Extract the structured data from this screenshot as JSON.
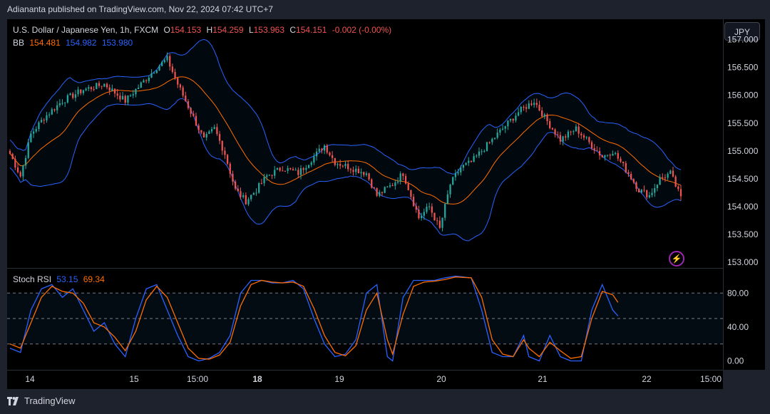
{
  "header": {
    "published": "Adiananta published on TradingView.com, Nov 22, 2024 07:42 UTC+7"
  },
  "currency_button": "JPY",
  "legend": {
    "symbol": "U.S. Dollar / Japanese Yen, 1h, FXCM",
    "o_label": "O",
    "o_value": "154.153",
    "h_label": "H",
    "h_value": "154.259",
    "l_label": "L",
    "l_value": "153.963",
    "c_label": "C",
    "c_value": "154.151",
    "change": "-0.002 (-0.00%)",
    "bb_label": "BB",
    "bb_mid": "154.481",
    "bb_upper": "154.982",
    "bb_lower": "153.980"
  },
  "stoch_legend": {
    "label": "Stoch RSI",
    "k": "53.15",
    "d": "69.34"
  },
  "footer": {
    "brand": "TradingView"
  },
  "colors": {
    "up": "#26a69a",
    "down": "#ef5350",
    "bb_mid": "#ff6d00",
    "bb_band": "#2962ff",
    "k": "#2962ff",
    "d": "#ff6d00"
  },
  "chart_data": [
    {
      "type": "candlestick",
      "title": "U.S. Dollar / Japanese Yen, 1h, FXCM",
      "y_ticks": [
        "157.000",
        "156.500",
        "156.000",
        "155.500",
        "155.000",
        "154.500",
        "154.000",
        "153.500",
        "153.000"
      ],
      "ylim": [
        152.95,
        157.2
      ],
      "x_ticks": [
        {
          "label": "14",
          "bold": false,
          "t": 0.05
        },
        {
          "label": "15",
          "bold": false,
          "t": 0.22
        },
        {
          "label": "15:00",
          "bold": false,
          "t": 0.355
        },
        {
          "label": "18",
          "bold": true,
          "t": 0.51
        },
        {
          "label": "19",
          "bold": false,
          "t": 0.67
        },
        {
          "label": "20",
          "bold": false,
          "t": 0.84
        },
        {
          "label": "21",
          "bold": false,
          "t": 1.0
        }
      ],
      "x_ticks_right": [
        {
          "label": "22",
          "bold": false,
          "t": 0.895
        },
        {
          "label": "15:00",
          "bold": false,
          "t": 0.985
        }
      ],
      "key_points": [
        [
          0,
          154.95
        ],
        [
          4,
          154.55
        ],
        [
          8,
          155.3
        ],
        [
          13,
          155.6
        ],
        [
          20,
          155.9
        ],
        [
          28,
          156.1
        ],
        [
          36,
          156.2
        ],
        [
          44,
          155.9
        ],
        [
          50,
          156.2
        ],
        [
          56,
          156.5
        ],
        [
          60,
          156.65
        ],
        [
          64,
          156.2
        ],
        [
          70,
          155.6
        ],
        [
          74,
          155.2
        ],
        [
          78,
          155.4
        ],
        [
          82,
          154.95
        ],
        [
          86,
          154.3
        ],
        [
          90,
          154.1
        ],
        [
          94,
          154.3
        ],
        [
          98,
          154.55
        ],
        [
          104,
          154.7
        ],
        [
          110,
          154.6
        ],
        [
          116,
          154.9
        ],
        [
          120,
          155.1
        ],
        [
          124,
          154.8
        ],
        [
          130,
          154.7
        ],
        [
          136,
          154.6
        ],
        [
          140,
          154.2
        ],
        [
          146,
          154.4
        ],
        [
          150,
          154.6
        ],
        [
          156,
          153.8
        ],
        [
          160,
          154.0
        ],
        [
          164,
          153.6
        ],
        [
          168,
          154.4
        ],
        [
          172,
          154.7
        ],
        [
          176,
          154.8
        ],
        [
          182,
          155.1
        ],
        [
          188,
          155.4
        ],
        [
          194,
          155.7
        ],
        [
          200,
          155.9
        ],
        [
          204,
          155.6
        ],
        [
          210,
          155.2
        ],
        [
          216,
          155.4
        ],
        [
          220,
          155.2
        ],
        [
          226,
          154.9
        ],
        [
          230,
          155.0
        ],
        [
          236,
          154.6
        ],
        [
          240,
          154.3
        ],
        [
          244,
          154.2
        ],
        [
          248,
          154.5
        ],
        [
          252,
          154.6
        ],
        [
          256,
          154.15
        ]
      ]
    },
    {
      "type": "line",
      "title": "Stoch RSI",
      "y_ticks": [
        "80.00",
        "40.00",
        "0.00"
      ],
      "ylim": [
        -8,
        108
      ],
      "bands": [
        80,
        50,
        20
      ],
      "series": [
        {
          "name": "K",
          "key_points": [
            [
              0,
              15
            ],
            [
              4,
              10
            ],
            [
              8,
              60
            ],
            [
              12,
              85
            ],
            [
              16,
              90
            ],
            [
              20,
              75
            ],
            [
              24,
              85
            ],
            [
              28,
              60
            ],
            [
              32,
              35
            ],
            [
              36,
              45
            ],
            [
              40,
              20
            ],
            [
              44,
              5
            ],
            [
              48,
              50
            ],
            [
              52,
              85
            ],
            [
              56,
              90
            ],
            [
              60,
              60
            ],
            [
              64,
              30
            ],
            [
              68,
              5
            ],
            [
              72,
              0
            ],
            [
              76,
              3
            ],
            [
              80,
              10
            ],
            [
              84,
              30
            ],
            [
              88,
              80
            ],
            [
              92,
              95
            ],
            [
              96,
              95
            ],
            [
              100,
              92
            ],
            [
              104,
              92
            ],
            [
              108,
              95
            ],
            [
              112,
              85
            ],
            [
              116,
              50
            ],
            [
              120,
              20
            ],
            [
              124,
              5
            ],
            [
              128,
              8
            ],
            [
              132,
              25
            ],
            [
              136,
              80
            ],
            [
              140,
              90
            ],
            [
              144,
              5
            ],
            [
              146,
              0
            ],
            [
              150,
              75
            ],
            [
              154,
              95
            ],
            [
              158,
              95
            ],
            [
              162,
              95
            ],
            [
              166,
              98
            ],
            [
              170,
              100
            ],
            [
              176,
              98
            ],
            [
              180,
              60
            ],
            [
              184,
              10
            ],
            [
              188,
              5
            ],
            [
              192,
              5
            ],
            [
              196,
              30
            ],
            [
              198,
              5
            ],
            [
              202,
              0
            ],
            [
              206,
              30
            ],
            [
              210,
              5
            ],
            [
              214,
              0
            ],
            [
              218,
              0
            ],
            [
              222,
              60
            ],
            [
              226,
              90
            ],
            [
              230,
              60
            ],
            [
              232,
              53
            ]
          ]
        },
        {
          "name": "D",
          "key_points": [
            [
              0,
              20
            ],
            [
              4,
              15
            ],
            [
              8,
              45
            ],
            [
              12,
              75
            ],
            [
              16,
              88
            ],
            [
              20,
              82
            ],
            [
              24,
              80
            ],
            [
              28,
              68
            ],
            [
              32,
              45
            ],
            [
              36,
              40
            ],
            [
              40,
              28
            ],
            [
              44,
              12
            ],
            [
              48,
              35
            ],
            [
              52,
              72
            ],
            [
              56,
              88
            ],
            [
              60,
              75
            ],
            [
              64,
              45
            ],
            [
              68,
              15
            ],
            [
              72,
              3
            ],
            [
              76,
              2
            ],
            [
              80,
              7
            ],
            [
              84,
              22
            ],
            [
              88,
              65
            ],
            [
              92,
              90
            ],
            [
              96,
              95
            ],
            [
              100,
              93
            ],
            [
              104,
              92
            ],
            [
              108,
              93
            ],
            [
              112,
              88
            ],
            [
              116,
              62
            ],
            [
              120,
              30
            ],
            [
              124,
              10
            ],
            [
              128,
              6
            ],
            [
              132,
              18
            ],
            [
              136,
              60
            ],
            [
              140,
              80
            ],
            [
              144,
              25
            ],
            [
              146,
              8
            ],
            [
              150,
              55
            ],
            [
              154,
              88
            ],
            [
              158,
              93
            ],
            [
              162,
              94
            ],
            [
              166,
              96
            ],
            [
              170,
              99
            ],
            [
              176,
              98
            ],
            [
              180,
              75
            ],
            [
              184,
              25
            ],
            [
              188,
              8
            ],
            [
              192,
              5
            ],
            [
              196,
              25
            ],
            [
              198,
              15
            ],
            [
              202,
              5
            ],
            [
              206,
              22
            ],
            [
              210,
              12
            ],
            [
              214,
              3
            ],
            [
              218,
              5
            ],
            [
              222,
              50
            ],
            [
              226,
              82
            ],
            [
              230,
              78
            ],
            [
              232,
              69
            ]
          ]
        }
      ]
    }
  ]
}
